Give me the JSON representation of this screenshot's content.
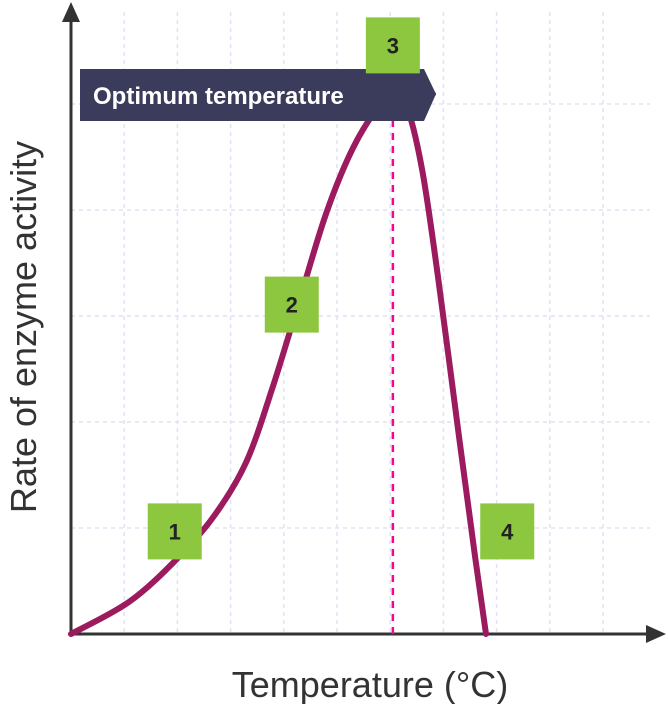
{
  "chart_data": {
    "type": "line",
    "title": "",
    "xlabel": "Temperature (°C)",
    "ylabel": "Rate of enzyme activity",
    "grid": true,
    "ticks_labeled": false,
    "curve_color": "#9b1b5e",
    "series": [
      {
        "points": [
          [
            0.0,
            0.0
          ],
          [
            1.1,
            0.06
          ],
          [
            2.0,
            0.14
          ],
          [
            2.7,
            0.22
          ],
          [
            3.3,
            0.32
          ],
          [
            3.8,
            0.46
          ],
          [
            4.3,
            0.62
          ],
          [
            4.8,
            0.78
          ],
          [
            5.3,
            0.9
          ],
          [
            5.8,
            0.98
          ],
          [
            6.05,
            1.0
          ],
          [
            6.3,
            0.98
          ],
          [
            6.6,
            0.86
          ],
          [
            6.9,
            0.66
          ],
          [
            7.3,
            0.36
          ],
          [
            7.6,
            0.14
          ],
          [
            7.8,
            0.0
          ]
        ]
      }
    ],
    "peak": {
      "x": 6.05,
      "y": 1.0
    },
    "callout": {
      "text": "Optimum temperature",
      "background": "#3b3b5c",
      "guide_color": "#ff0090"
    },
    "region_badges": [
      {
        "label": "1",
        "x": 1.95,
        "y": 0.19
      },
      {
        "label": "2",
        "x": 4.15,
        "y": 0.61
      },
      {
        "label": "3",
        "x": 6.05,
        "y": 1.09
      },
      {
        "label": "4",
        "x": 8.2,
        "y": 0.19
      }
    ],
    "badge_color": "#8dc63f"
  }
}
